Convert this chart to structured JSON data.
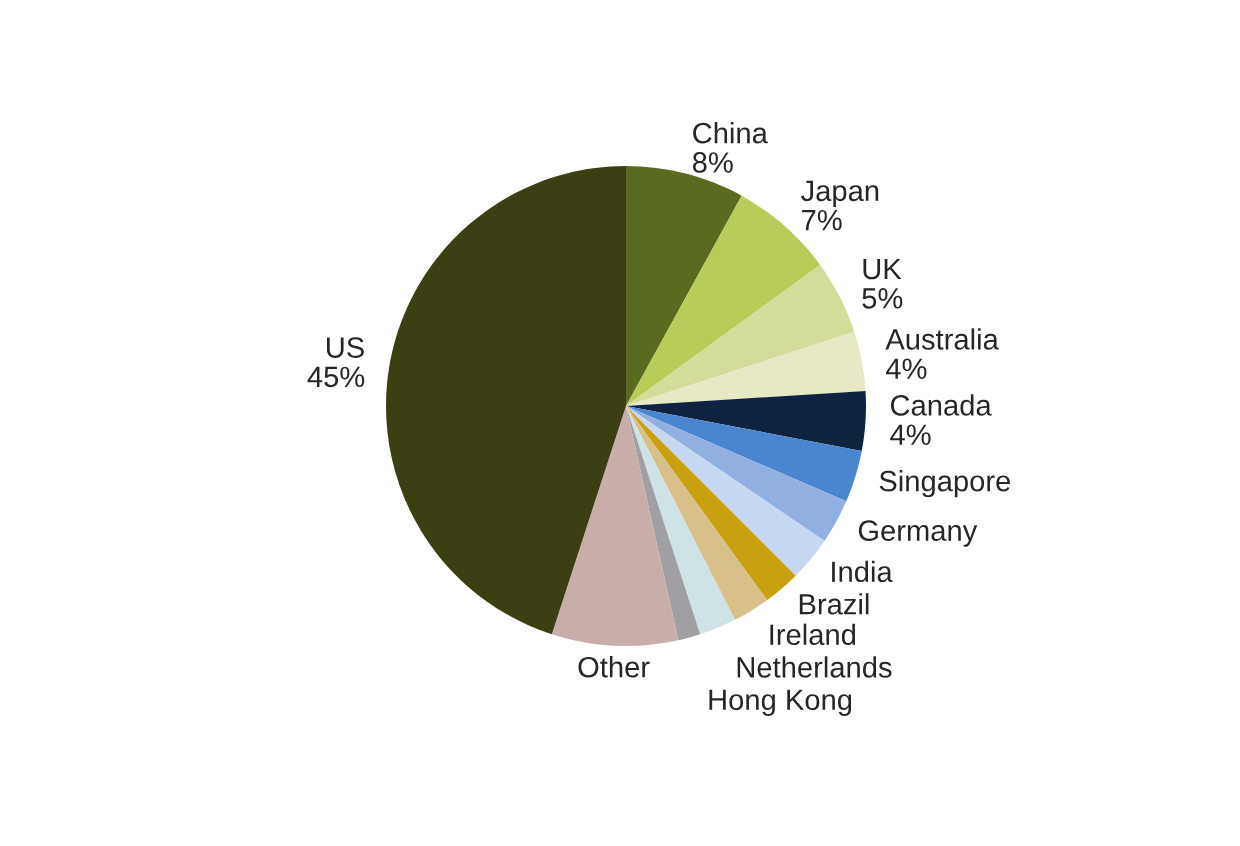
{
  "chart_data": {
    "type": "pie",
    "categories": [
      "China",
      "Japan",
      "UK",
      "Australia",
      "Canada",
      "Singapore",
      "Germany",
      "India",
      "Brazil",
      "Ireland",
      "Netherlands",
      "Hong Kong",
      "Other",
      "US"
    ],
    "values": [
      8,
      7,
      5,
      4,
      4,
      3.5,
      3,
      3,
      2.5,
      2.5,
      2.5,
      1.5,
      8.5,
      45
    ],
    "value_labels": [
      "8%",
      "7%",
      "5%",
      "4%",
      "4%",
      null,
      null,
      null,
      null,
      null,
      null,
      null,
      null,
      "45%"
    ],
    "colors": [
      "#5a6a1e",
      "#b8cc5a",
      "#d4dc9a",
      "#e6e9c4",
      "#0f2340",
      "#4a86d0",
      "#8fb0e0",
      "#c6d8f0",
      "#c9a010",
      "#d8c08a",
      "#cfe2e6",
      "#a0a0a4",
      "#c8aeaa",
      "#3b3f12"
    ]
  }
}
